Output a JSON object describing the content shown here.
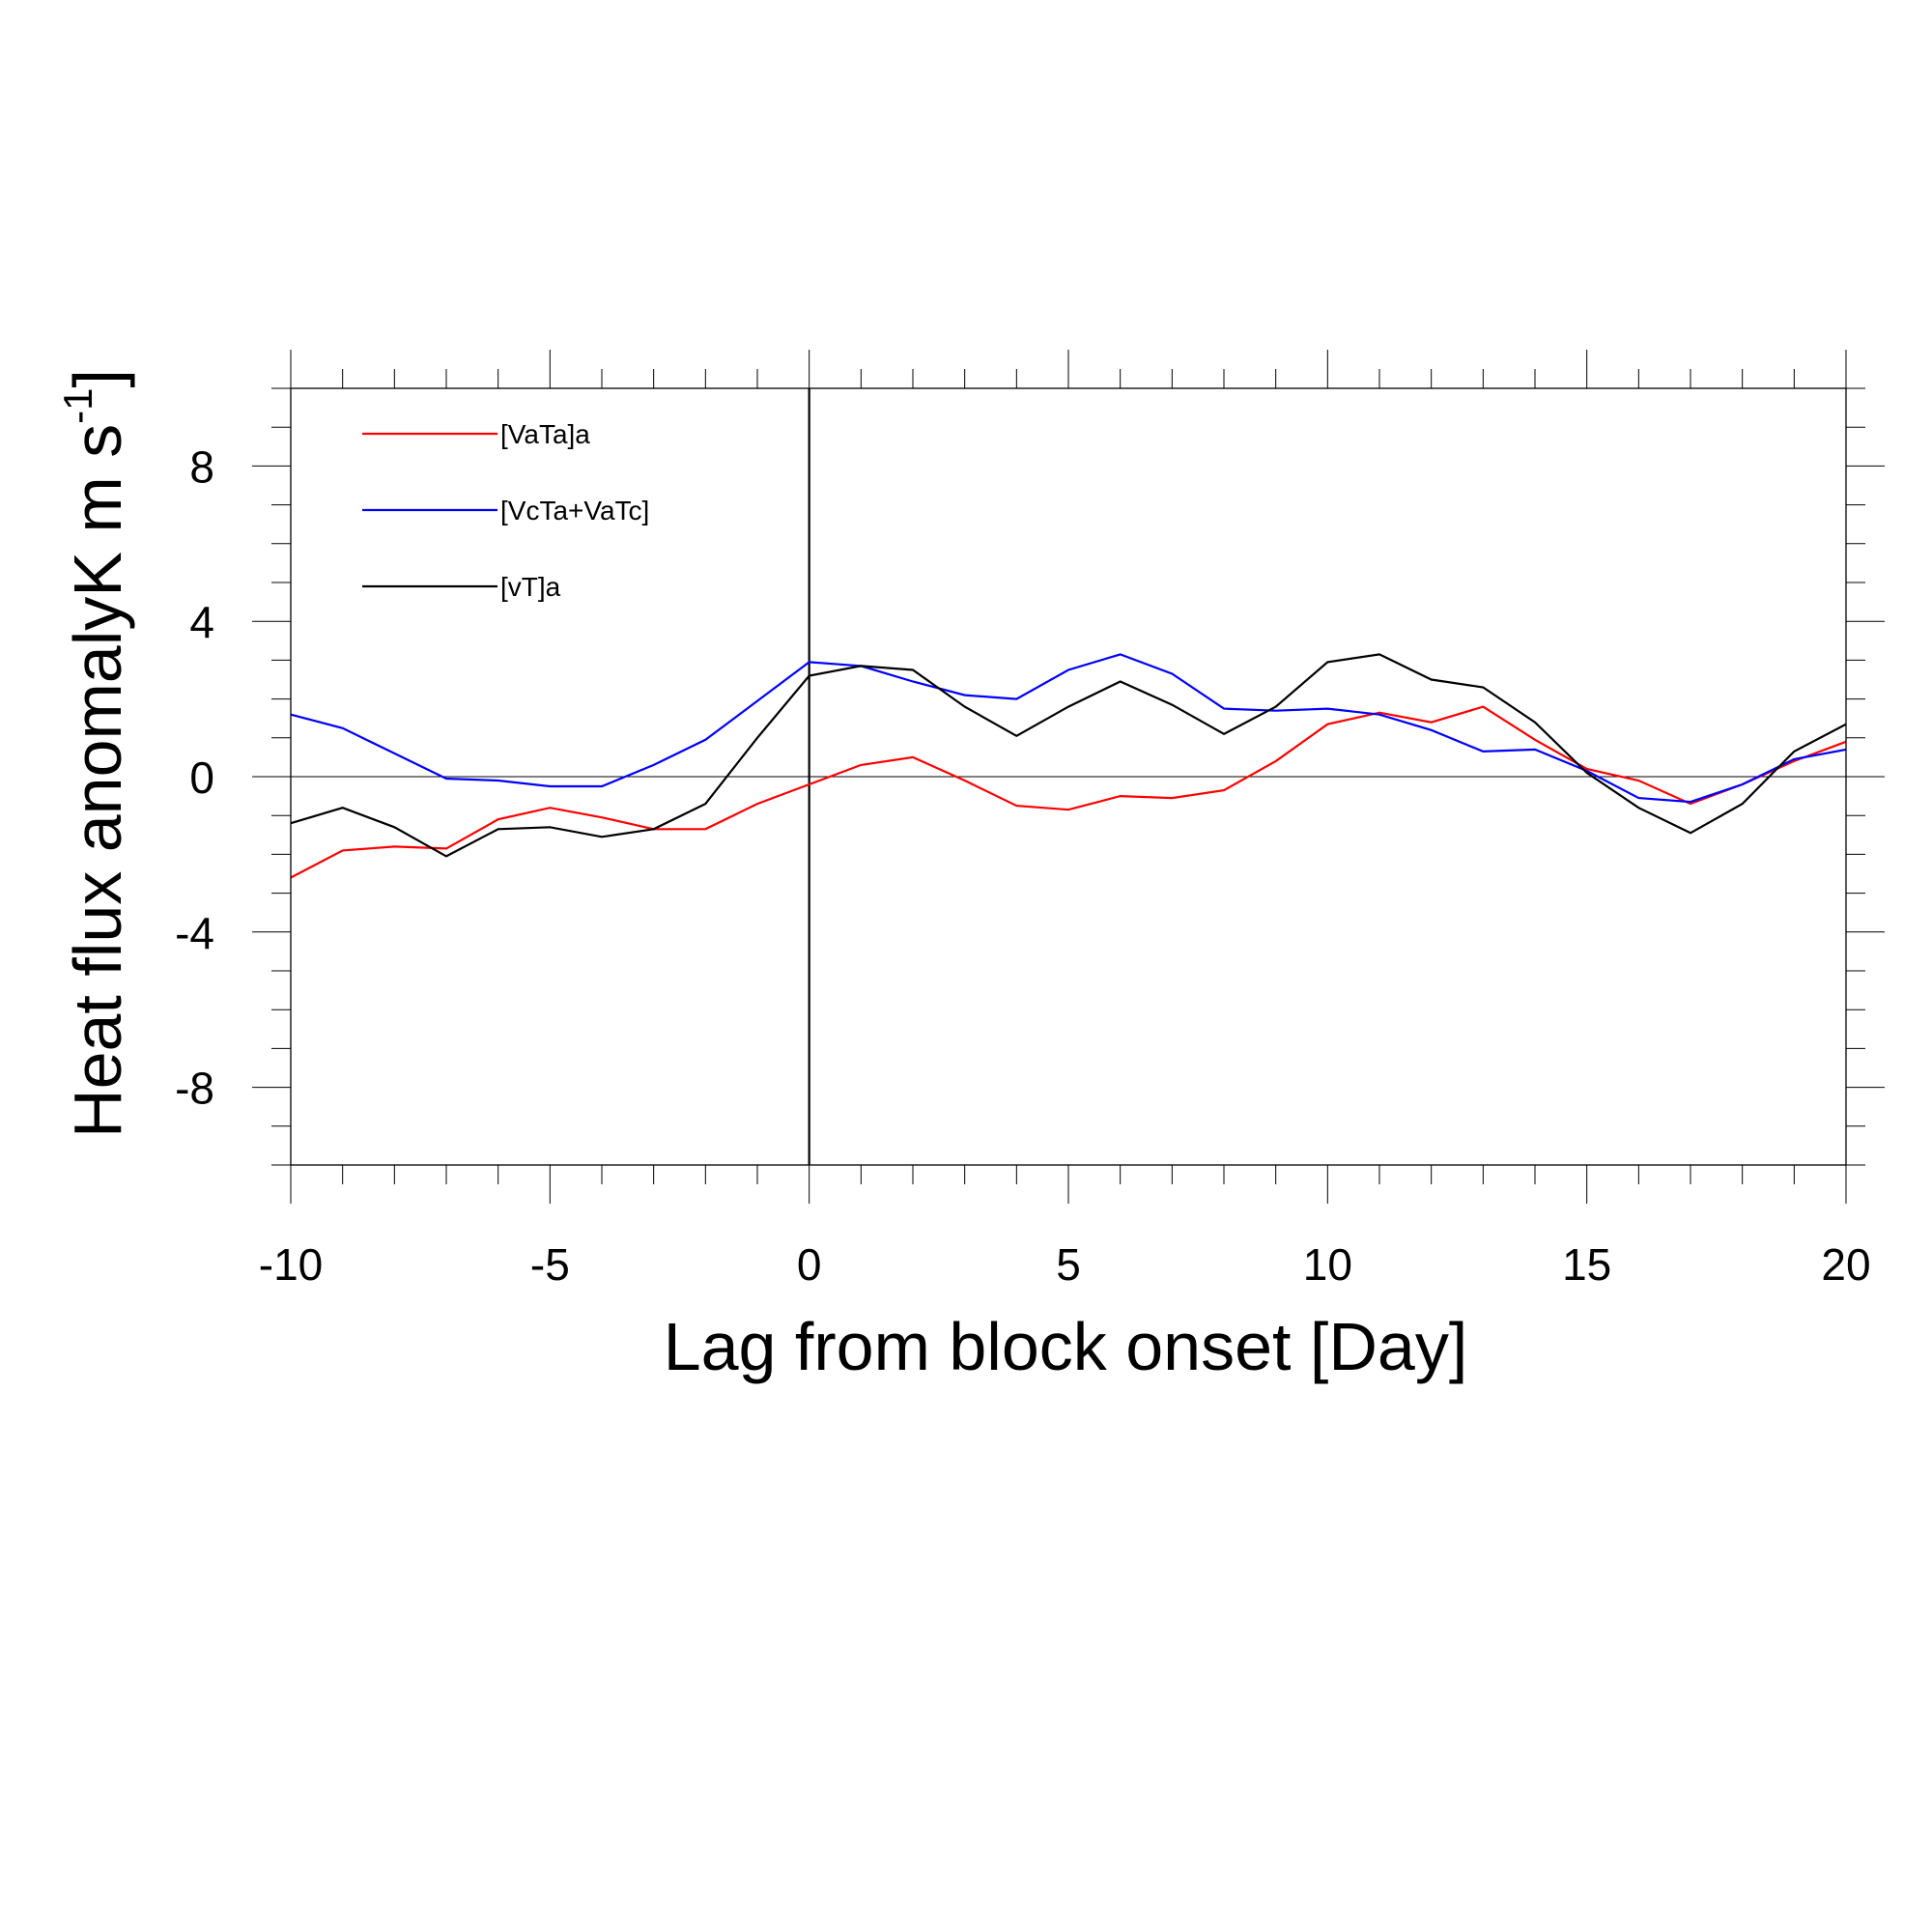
{
  "chart_data": {
    "type": "line",
    "title": "",
    "xlabel": "Lag from block onset [Day]",
    "ylabel": {
      "main": "Heat flux anomalyK m s",
      "superscript": "-1",
      "close": "]"
    },
    "xlim": [
      -10,
      20
    ],
    "ylim": [
      -10,
      10
    ],
    "x_ticks": [
      -10,
      -5,
      0,
      5,
      10,
      15,
      20
    ],
    "x_tick_labels": [
      "-10",
      "-5",
      "0",
      "5",
      "10",
      "15",
      "20"
    ],
    "y_ticks": [
      8,
      4,
      0,
      -4,
      -8
    ],
    "y_tick_labels": [
      "8",
      "4",
      "0",
      "-4",
      "-8"
    ],
    "zero_line_y": 0,
    "onset_line_x": 0,
    "grid": false,
    "legend_position": "top-left",
    "x": [
      -10,
      -9,
      -8,
      -7,
      -6,
      -5,
      -4,
      -3,
      -2,
      -1,
      0,
      1,
      2,
      3,
      4,
      5,
      6,
      7,
      8,
      9,
      10,
      11,
      12,
      13,
      14,
      15,
      16,
      17,
      18,
      19,
      20
    ],
    "series": [
      {
        "name": "[VaTa]a",
        "color": "#ff0000",
        "values": [
          -2.6,
          -1.9,
          -1.8,
          -1.85,
          -1.1,
          -0.8,
          -1.05,
          -1.35,
          -1.35,
          -0.7,
          -0.2,
          0.3,
          0.5,
          -0.1,
          -0.75,
          -0.85,
          -0.5,
          -0.55,
          -0.35,
          0.4,
          1.35,
          1.65,
          1.4,
          1.8,
          0.95,
          0.2,
          -0.1,
          -0.7,
          -0.2,
          0.4,
          0.9
        ]
      },
      {
        "name": "[VcTa+VaTc]",
        "color": "#0000ff",
        "values": [
          1.6,
          1.25,
          0.6,
          -0.05,
          -0.1,
          -0.25,
          -0.25,
          0.3,
          0.95,
          1.95,
          2.95,
          2.85,
          2.45,
          2.1,
          2.0,
          2.75,
          3.15,
          2.65,
          1.75,
          1.7,
          1.75,
          1.6,
          1.2,
          0.65,
          0.7,
          0.15,
          -0.55,
          -0.65,
          -0.2,
          0.45,
          0.7
        ]
      },
      {
        "name": "[vT]a",
        "color": "#000000",
        "values": [
          -1.2,
          -0.8,
          -1.3,
          -2.05,
          -1.35,
          -1.3,
          -1.55,
          -1.35,
          -0.7,
          1.0,
          2.6,
          2.85,
          2.75,
          1.8,
          1.05,
          1.8,
          2.45,
          1.85,
          1.1,
          1.8,
          2.95,
          3.15,
          2.5,
          2.3,
          1.4,
          0.1,
          -0.8,
          -1.45,
          -0.7,
          0.65,
          1.35
        ]
      }
    ]
  }
}
